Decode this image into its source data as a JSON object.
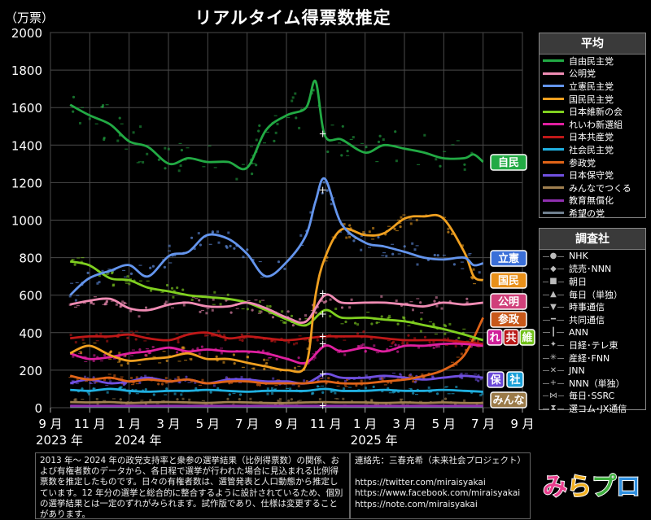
{
  "title": "リアルタイム得票数推定",
  "unit": "（万票）",
  "legend_avg": {
    "title": "平均",
    "items": [
      {
        "label": "自由民主党",
        "color": "#22aa44"
      },
      {
        "label": "公明党",
        "color": "#f08cb4"
      },
      {
        "label": "立憲民主党",
        "color": "#6495ed"
      },
      {
        "label": "国民民主党",
        "color": "#f0a020"
      },
      {
        "label": "日本維新の会",
        "color": "#80d020"
      },
      {
        "label": "れいわ新選組",
        "color": "#e020a0"
      },
      {
        "label": "日本共産党",
        "color": "#c01818"
      },
      {
        "label": "社会民主党",
        "color": "#20b0e0"
      },
      {
        "label": "参政党",
        "color": "#e06418"
      },
      {
        "label": "日本保守党",
        "color": "#7050e0"
      },
      {
        "label": "みんなでつくる",
        "color": "#a08050"
      },
      {
        "label": "教育無償化",
        "color": "#9030b0"
      },
      {
        "label": "希望の党",
        "color": "#708090"
      }
    ]
  },
  "legend_src": {
    "title": "調査社",
    "items": [
      {
        "label": "NHK",
        "mark": "●"
      },
      {
        "label": "読売･NNN",
        "mark": "◆"
      },
      {
        "label": "朝日",
        "mark": "■"
      },
      {
        "label": "毎日（単独）",
        "mark": "▲"
      },
      {
        "label": "時事通信",
        "mark": "▼"
      },
      {
        "label": "共同通信",
        "mark": "━"
      },
      {
        "label": "ANN",
        "mark": "┃"
      },
      {
        "label": "日経･テレ東",
        "mark": "✦"
      },
      {
        "label": "産経･FNN",
        "mark": "✳"
      },
      {
        "label": "JNN",
        "mark": "✕"
      },
      {
        "label": "NNN（単独）",
        "mark": "+"
      },
      {
        "label": "毎日･SSRC",
        "mark": "⋈"
      },
      {
        "label": "選コム･JX通信",
        "mark": "⧗"
      }
    ]
  },
  "tags": [
    {
      "text": "自民",
      "color": "#22aa44"
    },
    {
      "text": "立憲",
      "color": "#3b6fd8"
    },
    {
      "text": "国民",
      "color": "#e8901a"
    },
    {
      "text": "公明",
      "color": "#d0407a"
    },
    {
      "text": "参政",
      "color": "#c8581a"
    },
    {
      "text": "れ",
      "color": "#d0209a"
    },
    {
      "text": "共",
      "color": "#b81818"
    },
    {
      "text": "維",
      "color": "#70c018"
    },
    {
      "text": "保",
      "color": "#6a48d8"
    },
    {
      "text": "社",
      "color": "#1aa0d8"
    },
    {
      "text": "みんな",
      "color": "#9a7a48"
    }
  ],
  "note_left": "2013 年～ 2024 年の政党支持率と衆参の選挙結果（比例得票数）の関係、および有権者数のデータから、各日程で選挙が行われた場合に見込まれる比例得票数を推定したものです。日々の有権者数は、選管発表と人口動態から推定しています。12 年分の選挙と総合的に整合するように設計されているため、個別の選挙結果とは一定のずれがみられます。試作版であり、仕様は変更することがあります。",
  "note_right": {
    "line1": "連絡先：三春充希（未来社会プロジェクト）",
    "line2": "https://twitter.com/miraisyakai",
    "line3": "https://www.facebook.com/miraisyakai",
    "line4": "https://note.com/miraisyakai"
  },
  "logo": {
    "chars": [
      {
        "ch": "み",
        "color": "#e83c8c"
      },
      {
        "ch": "ら",
        "color": "#f0b020"
      },
      {
        "ch": "プ",
        "color": "#40b040"
      },
      {
        "ch": "ロ",
        "color": "#3090e0"
      }
    ]
  },
  "chart_data": {
    "type": "line",
    "title": "リアルタイム得票数推定",
    "ylabel": "（万票）",
    "ylim": [
      0,
      2000
    ],
    "yticks": [
      0,
      200,
      400,
      600,
      800,
      1000,
      1200,
      1400,
      1600,
      1800,
      2000
    ],
    "xlim": [
      "2023-09",
      "2025-09"
    ],
    "xtick_labels": [
      "9 月",
      "11 月",
      "1 月",
      "3 月",
      "5 月",
      "7 月",
      "9 月",
      "11 月",
      "1 月",
      "3 月",
      "5 月",
      "7 月",
      "9 月"
    ],
    "year_labels": [
      {
        "text": "2023 年",
        "month": "2023-09"
      },
      {
        "text": "2024 年",
        "month": "2024-01"
      },
      {
        "text": "2025 年",
        "month": "2025-01"
      }
    ],
    "grid": true,
    "election_marker_month": "2024-10-27",
    "series": [
      {
        "name": "自由民主党",
        "color": "#22aa44",
        "x": [
          2023.75,
          2023.83,
          2023.92,
          2024.0,
          2024.08,
          2024.17,
          2024.25,
          2024.33,
          2024.42,
          2024.5,
          2024.58,
          2024.67,
          2024.75,
          2024.79,
          2024.83,
          2024.9,
          2025.0,
          2025.08,
          2025.17,
          2025.25,
          2025.33,
          2025.42,
          2025.46,
          2025.5
        ],
        "values": [
          1615,
          1560,
          1510,
          1420,
          1390,
          1300,
          1330,
          1310,
          1310,
          1280,
          1480,
          1560,
          1600,
          1740,
          1450,
          1430,
          1360,
          1400,
          1380,
          1360,
          1330,
          1330,
          1350,
          1310
        ]
      },
      {
        "name": "公明党",
        "color": "#f08cb4",
        "x": [
          2023.75,
          2023.83,
          2023.92,
          2024.0,
          2024.08,
          2024.17,
          2024.25,
          2024.33,
          2024.42,
          2024.5,
          2024.58,
          2024.67,
          2024.75,
          2024.83,
          2024.9,
          2025.0,
          2025.08,
          2025.17,
          2025.25,
          2025.33,
          2025.42,
          2025.5
        ],
        "values": [
          550,
          570,
          580,
          530,
          520,
          550,
          560,
          540,
          540,
          560,
          530,
          480,
          460,
          600,
          560,
          560,
          560,
          550,
          540,
          560,
          550,
          560
        ]
      },
      {
        "name": "立憲民主党",
        "color": "#6495ed",
        "x": [
          2023.75,
          2023.83,
          2023.92,
          2024.0,
          2024.08,
          2024.17,
          2024.25,
          2024.33,
          2024.42,
          2024.5,
          2024.58,
          2024.67,
          2024.75,
          2024.79,
          2024.83,
          2024.9,
          2025.0,
          2025.08,
          2025.17,
          2025.25,
          2025.33,
          2025.42,
          2025.46,
          2025.5
        ],
        "values": [
          600,
          690,
          730,
          760,
          700,
          810,
          830,
          920,
          900,
          820,
          700,
          780,
          920,
          1100,
          1220,
          980,
          880,
          860,
          830,
          800,
          790,
          800,
          760,
          770
        ]
      },
      {
        "name": "国民民主党",
        "color": "#f0a020",
        "x": [
          2023.75,
          2023.83,
          2023.92,
          2024.0,
          2024.08,
          2024.17,
          2024.25,
          2024.33,
          2024.42,
          2024.5,
          2024.58,
          2024.67,
          2024.75,
          2024.79,
          2024.83,
          2024.9,
          2025.0,
          2025.08,
          2025.17,
          2025.25,
          2025.33,
          2025.42,
          2025.46,
          2025.5
        ],
        "values": [
          290,
          330,
          280,
          250,
          260,
          270,
          290,
          260,
          260,
          240,
          220,
          200,
          230,
          600,
          800,
          950,
          920,
          930,
          1010,
          1020,
          1010,
          830,
          700,
          680
        ]
      },
      {
        "name": "日本維新の会",
        "color": "#80d020",
        "x": [
          2023.75,
          2023.83,
          2023.92,
          2024.0,
          2024.08,
          2024.17,
          2024.25,
          2024.33,
          2024.42,
          2024.5,
          2024.58,
          2024.67,
          2024.75,
          2024.83,
          2024.9,
          2025.0,
          2025.08,
          2025.17,
          2025.25,
          2025.33,
          2025.42,
          2025.5
        ],
        "values": [
          780,
          760,
          690,
          680,
          640,
          620,
          600,
          590,
          580,
          560,
          520,
          470,
          440,
          520,
          480,
          480,
          470,
          460,
          440,
          420,
          390,
          360
        ]
      },
      {
        "name": "れいわ新選組",
        "color": "#e020a0",
        "x": [
          2023.75,
          2023.83,
          2023.92,
          2024.0,
          2024.08,
          2024.17,
          2024.25,
          2024.33,
          2024.42,
          2024.5,
          2024.58,
          2024.67,
          2024.75,
          2024.83,
          2024.9,
          2025.0,
          2025.08,
          2025.17,
          2025.25,
          2025.33,
          2025.42,
          2025.5
        ],
        "values": [
          290,
          260,
          270,
          290,
          300,
          320,
          300,
          310,
          300,
          300,
          290,
          260,
          240,
          330,
          300,
          320,
          300,
          330,
          330,
          340,
          340,
          330
        ]
      },
      {
        "name": "日本共産党",
        "color": "#c01818",
        "x": [
          2023.75,
          2023.83,
          2023.92,
          2024.0,
          2024.08,
          2024.17,
          2024.25,
          2024.33,
          2024.42,
          2024.5,
          2024.58,
          2024.67,
          2024.75,
          2024.83,
          2024.9,
          2025.0,
          2025.08,
          2025.17,
          2025.25,
          2025.33,
          2025.42,
          2025.5
        ],
        "values": [
          370,
          380,
          380,
          390,
          370,
          360,
          390,
          400,
          370,
          380,
          370,
          360,
          370,
          380,
          380,
          380,
          370,
          360,
          360,
          360,
          350,
          340
        ]
      },
      {
        "name": "社会民主党",
        "color": "#20b0e0",
        "x": [
          2023.75,
          2023.83,
          2023.92,
          2024.0,
          2024.08,
          2024.17,
          2024.25,
          2024.33,
          2024.42,
          2024.5,
          2024.58,
          2024.67,
          2024.75,
          2024.83,
          2024.9,
          2025.0,
          2025.08,
          2025.17,
          2025.25,
          2025.33,
          2025.42,
          2025.5
        ],
        "values": [
          95,
          90,
          100,
          90,
          85,
          90,
          90,
          95,
          90,
          85,
          90,
          90,
          90,
          100,
          90,
          90,
          95,
          90,
          90,
          95,
          90,
          85
        ]
      },
      {
        "name": "参政党",
        "color": "#e06418",
        "x": [
          2023.75,
          2023.83,
          2023.92,
          2024.0,
          2024.08,
          2024.17,
          2024.25,
          2024.33,
          2024.42,
          2024.5,
          2024.58,
          2024.67,
          2024.75,
          2024.83,
          2024.9,
          2025.0,
          2025.08,
          2025.17,
          2025.25,
          2025.33,
          2025.42,
          2025.5
        ],
        "values": [
          170,
          150,
          160,
          140,
          150,
          140,
          150,
          130,
          140,
          140,
          130,
          130,
          130,
          140,
          130,
          130,
          140,
          150,
          170,
          200,
          280,
          480
        ]
      },
      {
        "name": "日本保守党",
        "color": "#7050e0",
        "x": [
          2023.75,
          2023.83,
          2023.92,
          2024.0,
          2024.08,
          2024.17,
          2024.25,
          2024.33,
          2024.42,
          2024.5,
          2024.58,
          2024.67,
          2024.75,
          2024.83,
          2024.9,
          2025.0,
          2025.08,
          2025.17,
          2025.25,
          2025.33,
          2025.42,
          2025.5
        ],
        "values": [
          130,
          150,
          130,
          140,
          160,
          140,
          150,
          130,
          150,
          150,
          140,
          140,
          130,
          180,
          160,
          160,
          170,
          160,
          150,
          160,
          170,
          160
        ]
      },
      {
        "name": "みんなでつくる",
        "color": "#a08050",
        "x": [
          2023.75,
          2023.83,
          2023.92,
          2024.0,
          2024.08,
          2024.17,
          2024.25,
          2024.33,
          2024.42,
          2024.5,
          2024.58,
          2024.67,
          2024.75,
          2024.83,
          2024.9,
          2025.0,
          2025.08,
          2025.17,
          2025.25,
          2025.33,
          2025.42,
          2025.5
        ],
        "values": [
          30,
          28,
          30,
          25,
          28,
          30,
          28,
          25,
          30,
          28,
          25,
          25,
          28,
          30,
          28,
          28,
          25,
          28,
          25,
          28,
          25,
          25
        ]
      },
      {
        "name": "教育無償化",
        "color": "#9030b0",
        "x": [
          2023.75,
          2023.83,
          2023.92,
          2024.0,
          2024.08,
          2024.17,
          2024.25,
          2024.33,
          2024.42,
          2024.5,
          2024.58,
          2024.67,
          2024.75,
          2024.83,
          2024.9,
          2025.0,
          2025.08,
          2025.17,
          2025.25,
          2025.33,
          2025.42,
          2025.5
        ],
        "values": [
          10,
          10,
          10,
          10,
          10,
          10,
          10,
          10,
          10,
          10,
          10,
          10,
          10,
          10,
          10,
          10,
          10,
          10,
          10,
          10,
          10,
          10
        ]
      },
      {
        "name": "希望の党",
        "color": "#708090",
        "x": [
          2023.75,
          2023.83,
          2023.92,
          2024.0,
          2024.08,
          2024.17,
          2024.25,
          2024.33,
          2024.42,
          2024.5,
          2024.58,
          2024.67,
          2024.75,
          2024.83,
          2024.9,
          2025.0,
          2025.08,
          2025.17,
          2025.25,
          2025.33,
          2025.42,
          2025.5
        ],
        "values": [
          5,
          5,
          5,
          5,
          5,
          5,
          5,
          5,
          5,
          5,
          5,
          5,
          5,
          5,
          5,
          5,
          5,
          5,
          5,
          5,
          5,
          5
        ]
      }
    ]
  }
}
